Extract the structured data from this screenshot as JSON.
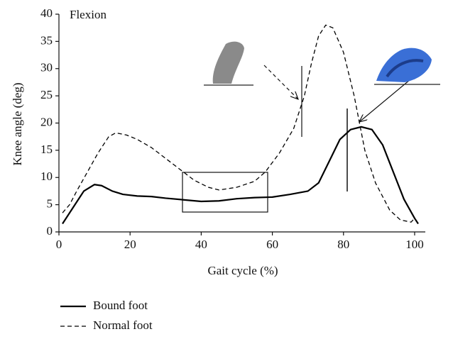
{
  "chart_data": {
    "type": "line",
    "annotation": "Flexion",
    "xlabel": "Gait cycle (%)",
    "ylabel": "Knee angle (deg)",
    "xlim": [
      0,
      103
    ],
    "ylim": [
      0,
      40
    ],
    "xticks": [
      0,
      20,
      40,
      60,
      80,
      100
    ],
    "yticks": [
      0,
      5,
      10,
      15,
      20,
      25,
      30,
      35,
      40
    ],
    "grid": false,
    "legend": "bottom left",
    "series": [
      {
        "name": "Bound foot",
        "color": "#000000",
        "line_style": "solid",
        "x": [
          1,
          3,
          5,
          7,
          10,
          12,
          15,
          18,
          22,
          26,
          30,
          35,
          40,
          45,
          50,
          55,
          60,
          65,
          70,
          73,
          76,
          79,
          82,
          85,
          88,
          91,
          94,
          97,
          100,
          101
        ],
        "values": [
          1.5,
          3.5,
          5.5,
          7.5,
          8.7,
          8.5,
          7.5,
          6.9,
          6.6,
          6.5,
          6.2,
          5.9,
          5.6,
          5.7,
          6.1,
          6.3,
          6.4,
          6.9,
          7.5,
          9,
          13,
          17,
          18.8,
          19.3,
          18.8,
          16,
          11,
          6,
          2.5,
          1.5
        ]
      },
      {
        "name": "Normal foot",
        "color": "#000000",
        "line_style": "dashed",
        "x": [
          1,
          3,
          5,
          8,
          11,
          14,
          16,
          19,
          22,
          26,
          30,
          34,
          38,
          42,
          45,
          50,
          55,
          58,
          62,
          66,
          69,
          71,
          73,
          75,
          77,
          80,
          83,
          86,
          89,
          93,
          96,
          99,
          100
        ],
        "values": [
          3.5,
          5,
          7.5,
          11,
          14.5,
          17.5,
          18.2,
          17.8,
          17,
          15.5,
          13.5,
          11.5,
          9.5,
          8.2,
          7.7,
          8.2,
          9.3,
          11,
          14.5,
          19,
          25,
          31,
          36,
          38,
          37.5,
          33,
          25,
          15,
          9,
          4,
          2.2,
          1.8,
          2.5
        ]
      }
    ]
  }
}
